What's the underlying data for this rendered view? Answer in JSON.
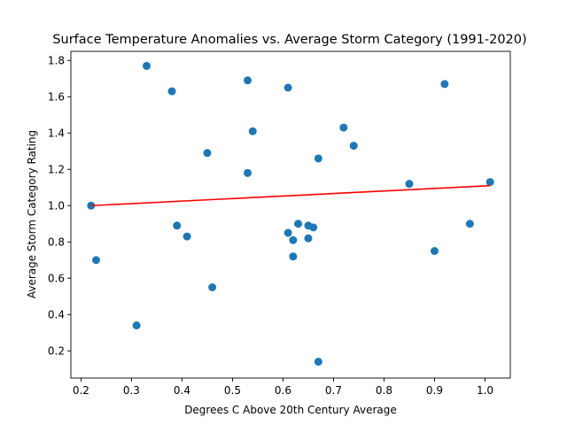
{
  "chart_data": {
    "type": "scatter",
    "title": "Surface Temperature Anomalies vs. Average Storm Category (1991-2020)",
    "xlabel": "Degrees C Above 20th Century Average",
    "ylabel": "Average Storm Category Rating",
    "xlim": [
      0.18,
      1.05
    ],
    "ylim": [
      0.05,
      1.85
    ],
    "x_ticks": [
      "0.2",
      "0.3",
      "0.4",
      "0.5",
      "0.6",
      "0.7",
      "0.8",
      "0.9",
      "1.0"
    ],
    "y_ticks": [
      "0.2",
      "0.4",
      "0.6",
      "0.8",
      "1.0",
      "1.2",
      "1.4",
      "1.6",
      "1.8"
    ],
    "grid": false,
    "legend": "none",
    "colors": {
      "points": "#1f77b4",
      "trendline": "#ff0000",
      "axes": "#000000"
    },
    "points": [
      {
        "x": 0.22,
        "y": 1.0
      },
      {
        "x": 0.23,
        "y": 0.7
      },
      {
        "x": 0.31,
        "y": 0.34
      },
      {
        "x": 0.33,
        "y": 1.77
      },
      {
        "x": 0.38,
        "y": 1.63
      },
      {
        "x": 0.39,
        "y": 0.89
      },
      {
        "x": 0.41,
        "y": 0.83
      },
      {
        "x": 0.45,
        "y": 1.29
      },
      {
        "x": 0.46,
        "y": 0.55
      },
      {
        "x": 0.53,
        "y": 1.69
      },
      {
        "x": 0.53,
        "y": 1.18
      },
      {
        "x": 0.54,
        "y": 1.41
      },
      {
        "x": 0.61,
        "y": 1.65
      },
      {
        "x": 0.61,
        "y": 0.85
      },
      {
        "x": 0.62,
        "y": 0.81
      },
      {
        "x": 0.62,
        "y": 0.72
      },
      {
        "x": 0.63,
        "y": 0.9
      },
      {
        "x": 0.65,
        "y": 0.89
      },
      {
        "x": 0.65,
        "y": 0.82
      },
      {
        "x": 0.66,
        "y": 0.88
      },
      {
        "x": 0.67,
        "y": 1.26
      },
      {
        "x": 0.67,
        "y": 0.14
      },
      {
        "x": 0.72,
        "y": 1.43
      },
      {
        "x": 0.74,
        "y": 1.33
      },
      {
        "x": 0.85,
        "y": 1.12
      },
      {
        "x": 0.9,
        "y": 0.75
      },
      {
        "x": 0.92,
        "y": 1.67
      },
      {
        "x": 0.97,
        "y": 0.9
      },
      {
        "x": 1.01,
        "y": 1.13
      }
    ],
    "trendline": {
      "x": [
        0.22,
        1.01
      ],
      "y": [
        1.0,
        1.11
      ]
    }
  }
}
